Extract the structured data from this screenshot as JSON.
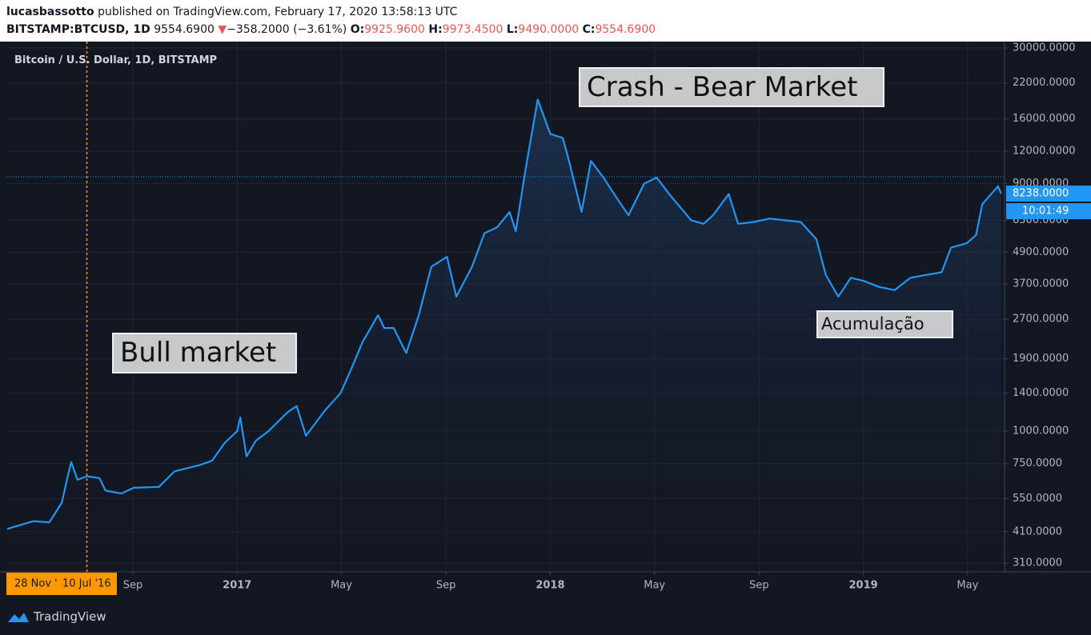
{
  "header": {
    "author": "lucasbassotto",
    "published": "published on TradingView.com, February 17, 2020 13:58:13 UTC",
    "symbol": "BITSTAMP:BTCUSD, 1D",
    "last": "9554.6900",
    "arrow": "▼",
    "change": "−358.2000 (−3.61%)",
    "ohlc": [
      {
        "label": "O:",
        "value": "9925.9600"
      },
      {
        "label": "H:",
        "value": "9973.4500"
      },
      {
        "label": "L:",
        "value": "9490.0000"
      },
      {
        "label": "C:",
        "value": "9554.6900"
      }
    ]
  },
  "chart_data": {
    "type": "line",
    "title": "Bitcoin / U.S. Dollar, 1D, BITSTAMP",
    "log_scale": true,
    "grid": true,
    "x": [
      2016.265,
      2016.35,
      2016.4,
      2016.44,
      2016.46,
      2016.47,
      2016.49,
      2016.52,
      2016.56,
      2016.58,
      2016.63,
      2016.67,
      2016.75,
      2016.8,
      2016.84,
      2016.88,
      2016.92,
      2016.96,
      2017.0,
      2017.01,
      2017.03,
      2017.06,
      2017.1,
      2017.16,
      2017.19,
      2017.22,
      2017.28,
      2017.33,
      2017.37,
      2017.4,
      2017.45,
      2017.47,
      2017.5,
      2017.54,
      2017.58,
      2017.62,
      2017.67,
      2017.7,
      2017.75,
      2017.79,
      2017.83,
      2017.87,
      2017.89,
      2017.92,
      2017.96,
      2018.0,
      2018.04,
      2018.06,
      2018.1,
      2018.13,
      2018.17,
      2018.21,
      2018.25,
      2018.3,
      2018.34,
      2018.38,
      2018.45,
      2018.49,
      2018.52,
      2018.57,
      2018.6,
      2018.65,
      2018.7,
      2018.75,
      2018.8,
      2018.85,
      2018.88,
      2018.92,
      2018.96,
      2019.0,
      2019.05,
      2019.1,
      2019.15,
      2019.2,
      2019.25,
      2019.28,
      2019.33,
      2019.36,
      2019.38,
      2019.4,
      2019.43,
      2019.44
    ],
    "series": [
      {
        "name": "BTCUSD",
        "color": "#2196f3",
        "values": [
          420,
          450,
          445,
          530,
          680,
          760,
          650,
          670,
          660,
          590,
          575,
          605,
          610,
          700,
          720,
          740,
          770,
          900,
          1000,
          1130,
          800,
          920,
          1000,
          1180,
          1250,
          960,
          1200,
          1400,
          1800,
          2200,
          2800,
          2500,
          2500,
          2000,
          2800,
          4300,
          4700,
          3300,
          4300,
          5800,
          6100,
          7000,
          5900,
          10000,
          19000,
          14000,
          13500,
          11000,
          7000,
          11000,
          9500,
          8000,
          6800,
          9000,
          9500,
          8200,
          6500,
          6300,
          6800,
          8200,
          6300,
          6400,
          6600,
          6500,
          6400,
          5500,
          4000,
          3300,
          3900,
          3800,
          3600,
          3500,
          3900,
          4000,
          4100,
          5100,
          5300,
          5700,
          7500,
          8000,
          8800,
          8238
        ]
      }
    ],
    "xlim": [
      2016.263,
      2019.451
    ],
    "xticks": [
      {
        "value": 2016.667,
        "label": "Sep"
      },
      {
        "value": 2017.0,
        "label": "2017"
      },
      {
        "value": 2017.333,
        "label": "May"
      },
      {
        "value": 2017.667,
        "label": "Sep"
      },
      {
        "value": 2018.0,
        "label": "2018"
      },
      {
        "value": 2018.333,
        "label": "May"
      },
      {
        "value": 2018.667,
        "label": "Sep"
      },
      {
        "value": 2019.0,
        "label": "2019"
      },
      {
        "value": 2019.333,
        "label": "May"
      }
    ],
    "ylim": [
      287,
      31750
    ],
    "yticks": [
      {
        "value": 310,
        "label": "310.0000"
      },
      {
        "value": 410,
        "label": "410.0000"
      },
      {
        "value": 550,
        "label": "550.0000"
      },
      {
        "value": 750,
        "label": "750.0000"
      },
      {
        "value": 1000,
        "label": "1000.0000"
      },
      {
        "value": 1400,
        "label": "1400.0000"
      },
      {
        "value": 1900,
        "label": "1900.0000"
      },
      {
        "value": 2700,
        "label": "2700.0000"
      },
      {
        "value": 3700,
        "label": "3700.0000"
      },
      {
        "value": 4900,
        "label": "4900.0000"
      },
      {
        "value": 6500,
        "label": "6500.0000"
      },
      {
        "value": 9000,
        "label": "9000.0000"
      },
      {
        "value": 12000,
        "label": "12000.0000"
      },
      {
        "value": 16000,
        "label": "16000.0000"
      },
      {
        "value": 22000,
        "label": "22000.0000"
      },
      {
        "value": 30000,
        "label": "30000.0000"
      }
    ],
    "price_line": 9554.69,
    "last_tag": {
      "value": 8238,
      "label": "8238.0000"
    },
    "countdown": "10:01:49",
    "crosshair": {
      "x": 2016.52,
      "labels": [
        "28 Nov '",
        "10 Jul '16"
      ],
      "color": "#ff9800"
    },
    "annotations": [
      "Crash - Bear Market",
      "Bull market",
      "Acumulação"
    ]
  },
  "footer": {
    "brand": "TradingView"
  }
}
